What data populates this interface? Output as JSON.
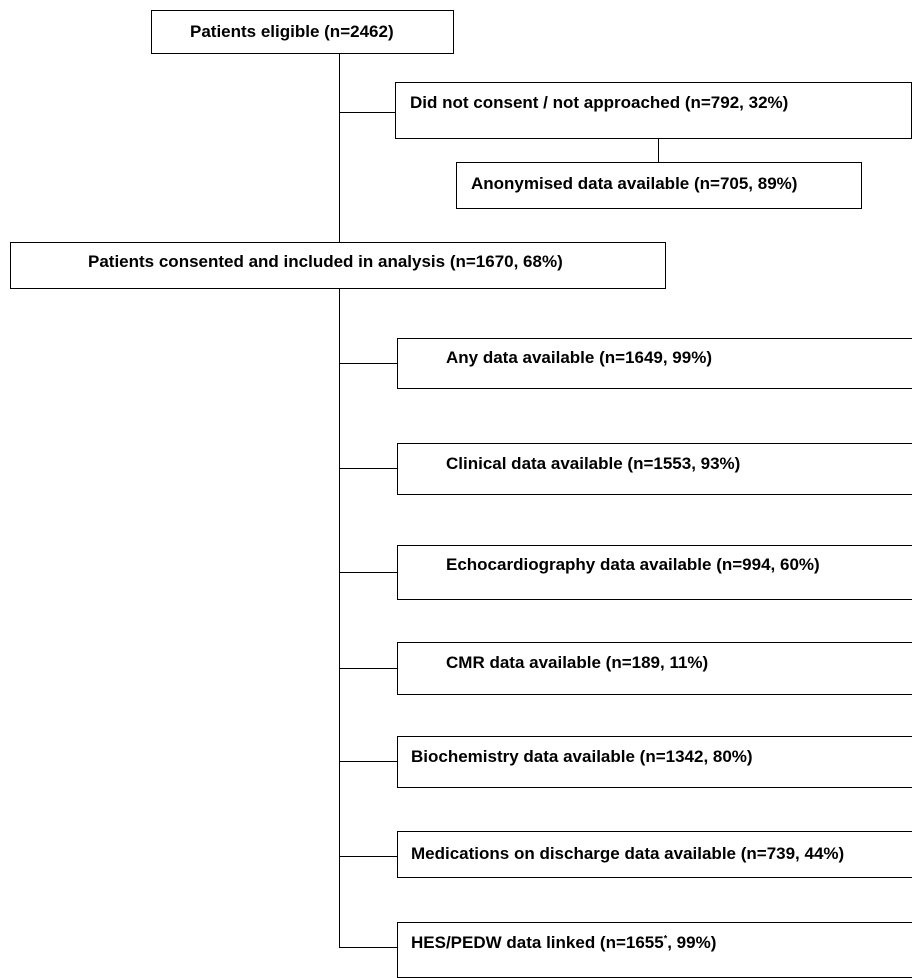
{
  "flowchart": {
    "eligible": "Patients eligible (n=2462)",
    "not_consented": "Did not consent / not approached (n=792, 32%)",
    "anonymised": "Anonymised data available (n=705, 89%)",
    "consented": "Patients consented and included in analysis (n=1670, 68%)",
    "any_data": "Any data available (n=1649, 99%)",
    "clinical_data": "Clinical data available (n=1553, 93%)",
    "echo_data": "Echocardiography data available (n=994, 60%)",
    "cmr_data": "CMR data available (n=189, 11%)",
    "biochem_data": "Biochemistry data available (n=1342, 80%)",
    "medications_data": "Medications on discharge data available (n=739, 44%)",
    "hes_prefix": "HES/PEDW data linked (n=1655",
    "hes_marker": "*",
    "hes_suffix": ", 99%)"
  }
}
